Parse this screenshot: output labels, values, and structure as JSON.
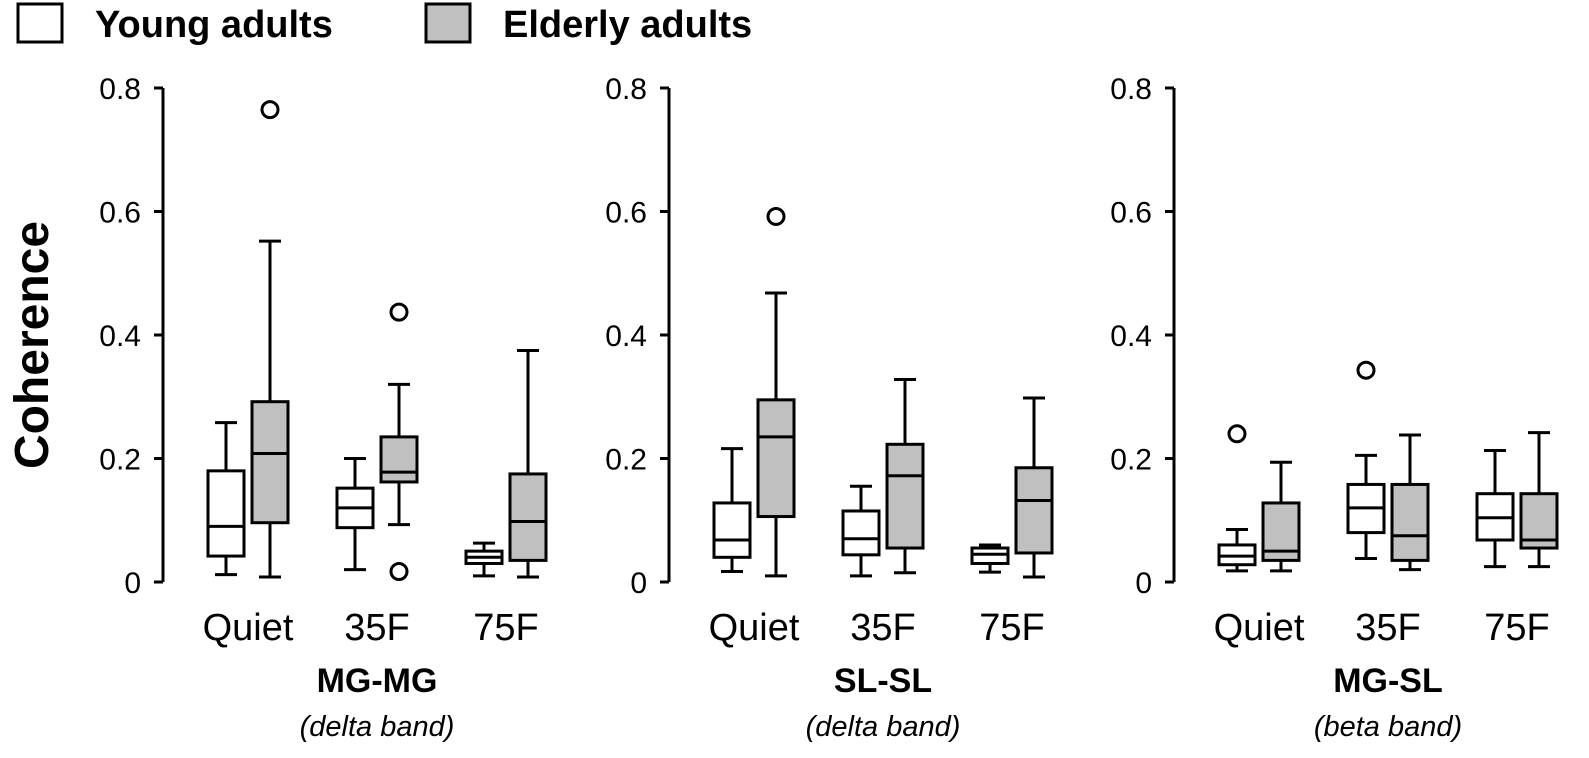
{
  "chart_data": {
    "type": "boxplot",
    "ylabel": "Coherence",
    "ylim": [
      0,
      0.8
    ],
    "yticks": [
      "0",
      "0.2",
      "0.4",
      "0.6",
      "0.8"
    ],
    "categories": [
      "Quiet",
      "35F",
      "75F"
    ],
    "legend": {
      "placement": "top-left",
      "entries": [
        {
          "name": "Young adults",
          "color": "#ffffff"
        },
        {
          "name": "Elderly adults",
          "color": "#c0c0c0"
        }
      ]
    },
    "panels": [
      {
        "title": "MG-MG",
        "subtitle": "(delta band)",
        "boxes": [
          {
            "category": "Quiet",
            "group": "Young adults",
            "min": 0.012,
            "q1": 0.042,
            "median": 0.09,
            "q3": 0.18,
            "max": 0.258,
            "outliers": []
          },
          {
            "category": "Quiet",
            "group": "Elderly adults",
            "min": 0.008,
            "q1": 0.096,
            "median": 0.208,
            "q3": 0.292,
            "max": 0.552,
            "outliers": [
              0.765
            ]
          },
          {
            "category": "35F",
            "group": "Young adults",
            "min": 0.02,
            "q1": 0.088,
            "median": 0.12,
            "q3": 0.152,
            "max": 0.2,
            "outliers": []
          },
          {
            "category": "35F",
            "group": "Elderly adults",
            "min": 0.093,
            "q1": 0.162,
            "median": 0.178,
            "q3": 0.235,
            "max": 0.32,
            "outliers": [
              0.437,
              0.017
            ]
          },
          {
            "category": "75F",
            "group": "Young adults",
            "min": 0.01,
            "q1": 0.03,
            "median": 0.04,
            "q3": 0.05,
            "max": 0.063,
            "outliers": []
          },
          {
            "category": "75F",
            "group": "Elderly adults",
            "min": 0.008,
            "q1": 0.035,
            "median": 0.098,
            "q3": 0.175,
            "max": 0.375,
            "outliers": []
          }
        ]
      },
      {
        "title": "SL-SL",
        "subtitle": "(delta band)",
        "boxes": [
          {
            "category": "Quiet",
            "group": "Young adults",
            "min": 0.017,
            "q1": 0.04,
            "median": 0.068,
            "q3": 0.128,
            "max": 0.216,
            "outliers": []
          },
          {
            "category": "Quiet",
            "group": "Elderly adults",
            "min": 0.01,
            "q1": 0.106,
            "median": 0.235,
            "q3": 0.295,
            "max": 0.468,
            "outliers": [
              0.592
            ]
          },
          {
            "category": "35F",
            "group": "Young adults",
            "min": 0.01,
            "q1": 0.044,
            "median": 0.07,
            "q3": 0.115,
            "max": 0.155,
            "outliers": []
          },
          {
            "category": "35F",
            "group": "Elderly adults",
            "min": 0.015,
            "q1": 0.055,
            "median": 0.172,
            "q3": 0.223,
            "max": 0.328,
            "outliers": []
          },
          {
            "category": "75F",
            "group": "Young adults",
            "min": 0.016,
            "q1": 0.03,
            "median": 0.045,
            "q3": 0.055,
            "max": 0.06,
            "outliers": []
          },
          {
            "category": "75F",
            "group": "Elderly adults",
            "min": 0.008,
            "q1": 0.047,
            "median": 0.132,
            "q3": 0.185,
            "max": 0.298,
            "outliers": []
          }
        ]
      },
      {
        "title": "MG-SL",
        "subtitle": "(beta band)",
        "boxes": [
          {
            "category": "Quiet",
            "group": "Young adults",
            "min": 0.018,
            "q1": 0.028,
            "median": 0.042,
            "q3": 0.06,
            "max": 0.085,
            "outliers": [
              0.24
            ]
          },
          {
            "category": "Quiet",
            "group": "Elderly adults",
            "min": 0.018,
            "q1": 0.035,
            "median": 0.05,
            "q3": 0.128,
            "max": 0.194,
            "outliers": []
          },
          {
            "category": "35F",
            "group": "Young adults",
            "min": 0.038,
            "q1": 0.08,
            "median": 0.12,
            "q3": 0.158,
            "max": 0.205,
            "outliers": [
              0.343
            ]
          },
          {
            "category": "35F",
            "group": "Elderly adults",
            "min": 0.02,
            "q1": 0.035,
            "median": 0.075,
            "q3": 0.158,
            "max": 0.238,
            "outliers": []
          },
          {
            "category": "75F",
            "group": "Young adults",
            "min": 0.025,
            "q1": 0.068,
            "median": 0.104,
            "q3": 0.143,
            "max": 0.213,
            "outliers": []
          },
          {
            "category": "75F",
            "group": "Elderly adults",
            "min": 0.025,
            "q1": 0.055,
            "median": 0.068,
            "q3": 0.143,
            "max": 0.242,
            "outliers": []
          }
        ]
      }
    ]
  }
}
